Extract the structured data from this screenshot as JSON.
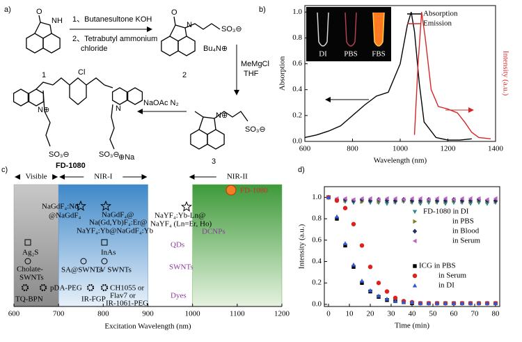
{
  "panels": {
    "a": {
      "label": "a)",
      "steps": [
        "1、Butanesultone KOH",
        "2、Tetrabutyl ammonium",
        "chloride",
        "MeMgCl",
        "THF",
        "NaOAc N₂"
      ],
      "compounds": [
        "1",
        "2",
        "3",
        "FD-1080"
      ],
      "atoms": [
        "NH",
        "O",
        "N",
        "O",
        "SO₃⊖",
        "Bu₄N⊕",
        "N⊕",
        "SO₃⊖",
        "Cl",
        "N⊕",
        "N",
        "SO₃⊖",
        "SO₃⊖",
        "⊕Na"
      ]
    },
    "b": {
      "label": "b)",
      "chart_data": {
        "type": "line",
        "xlabel": "Wavelength (nm)",
        "ylabel": "Absorption",
        "y2label": "Intensity (a.u.)",
        "xlim": [
          600,
          1400
        ],
        "xticks": [
          600,
          800,
          1000,
          1200,
          1400
        ],
        "ylim": [
          0,
          1.05
        ],
        "yticks": [
          {
            "value": 0,
            "label": "0.0"
          },
          0.2,
          0.4,
          0.6,
          0.8,
          {
            "value": 1,
            "label": "1.0"
          }
        ],
        "y2lim": [
          0,
          1.05
        ],
        "inset_labels": [
          "DI",
          "PBS",
          "FBS"
        ],
        "series": [
          {
            "name": "Absorption",
            "color": "#000000",
            "x": [
              600,
              650,
              700,
              750,
              800,
              850,
              900,
              950,
              1000,
              1030,
              1046,
              1060,
              1080,
              1100,
              1150,
              1200,
              1250,
              1300
            ],
            "values": [
              0.03,
              0.05,
              0.08,
              0.12,
              0.2,
              0.28,
              0.35,
              0.38,
              0.6,
              0.9,
              1.0,
              0.85,
              0.45,
              0.15,
              0.03,
              0.01,
              0.01,
              0.02
            ]
          },
          {
            "name": "Emission",
            "color": "#d62728",
            "axis": "y2",
            "x": [
              1060,
              1075,
              1090,
              1105,
              1130,
              1160,
              1200,
              1240,
              1270,
              1300,
              1330,
              1380
            ],
            "values": [
              0.05,
              0.6,
              1.0,
              0.8,
              0.4,
              0.27,
              0.25,
              0.22,
              0.15,
              0.07,
              0.03,
              0.02
            ]
          }
        ]
      }
    },
    "c": {
      "label": "c)",
      "xlabel": "Excitation Wavelength (nm)",
      "xlim": [
        600,
        1200
      ],
      "xticks": [
        600,
        700,
        800,
        900,
        1000,
        1100,
        1200
      ],
      "regions": [
        {
          "label": "Visible",
          "range": [
            600,
            700
          ],
          "color": "#9a9a9a"
        },
        {
          "label": "NIR-I",
          "range": [
            700,
            900
          ],
          "color": "#4a90c8"
        },
        {
          "label": "NIR-II",
          "range": [
            1000,
            1200
          ],
          "color": "#5aa84a"
        }
      ],
      "items": [
        "FD-1080",
        "NaGdF₄:Nd",
        "@NaGdF₄",
        "NaGdF₄@",
        "Na(Gd,Yb)F₄:Er@",
        "NaYF₄:Yb@NaGdF₄:Yb",
        "NaYF₄:Yb-Ln@",
        "NaYF₄ (Ln=Er, Ho)",
        "DCNPs",
        "Ag₂S",
        "InAs",
        "QDs",
        "Cholate-",
        "SWNTs",
        "SA@SWNTs",
        "LV SWNTs",
        "SWNTs",
        "pDA-PEG",
        "TQ-BPN",
        "IR-FGP",
        "CH1055 or",
        "Flav7 or",
        "IR-1061-PEG",
        "Dyes"
      ]
    },
    "d": {
      "label": "d)",
      "chart_data": {
        "type": "scatter",
        "xlabel": "Time (min)",
        "ylabel": "Intensity (a.u.)",
        "xlim": [
          -2,
          82
        ],
        "xticks": [
          0,
          10,
          20,
          30,
          40,
          50,
          60,
          70,
          80
        ],
        "ylim": [
          -0.02,
          1.1
        ],
        "yticks": [
          {
            "value": 0,
            "label": "0.0"
          },
          0.2,
          0.4,
          0.6,
          0.8,
          {
            "value": 1,
            "label": "1.0"
          }
        ],
        "x": [
          0,
          4,
          8,
          12,
          16,
          20,
          24,
          28,
          32,
          36,
          40,
          44,
          48,
          52,
          56,
          60,
          64,
          68,
          72,
          76,
          80
        ],
        "series": [
          {
            "name": "FD-1080 in DI",
            "color": "#2e8b8b",
            "marker": "triangle-down",
            "values": [
              1,
              0.97,
              0.96,
              0.95,
              0.96,
              0.95,
              0.95,
              0.94,
              0.95,
              0.96,
              0.95,
              0.94,
              0.95,
              0.95,
              0.94,
              0.95,
              0.95,
              0.94,
              0.95,
              0.94,
              0.95
            ]
          },
          {
            "name": "in PBS",
            "color": "#808020",
            "marker": "triangle-right",
            "values": [
              1,
              0.98,
              0.97,
              0.97,
              0.96,
              0.97,
              0.96,
              0.97,
              0.96,
              0.97,
              0.96,
              0.96,
              0.97,
              0.96,
              0.96,
              0.97,
              0.96,
              0.96,
              0.97,
              0.96,
              0.96
            ]
          },
          {
            "name": "in Blood",
            "color": "#1f2f6f",
            "marker": "diamond",
            "values": [
              1,
              0.98,
              0.98,
              0.97,
              0.98,
              0.97,
              0.98,
              0.97,
              0.97,
              0.98,
              0.97,
              0.97,
              0.98,
              0.97,
              0.97,
              0.98,
              0.97,
              0.97,
              0.98,
              0.97,
              0.97
            ]
          },
          {
            "name": "in Serum",
            "color": "#c060c0",
            "marker": "triangle-left",
            "values": [
              1,
              0.99,
              0.99,
              0.98,
              0.99,
              0.99,
              0.98,
              0.99,
              0.99,
              0.98,
              0.99,
              0.99,
              0.98,
              0.99,
              0.99,
              0.98,
              0.99,
              0.99,
              0.99,
              0.98,
              0.99
            ]
          },
          {
            "name": "ICG in PBS",
            "color": "#000000",
            "marker": "square",
            "values": [
              1,
              0.8,
              0.55,
              0.35,
              0.2,
              0.12,
              0.07,
              0.04,
              0.03,
              0.02,
              0.01,
              0.01,
              0.01,
              0.01,
              0.01,
              0.01,
              0.01,
              0.01,
              0.01,
              0.01,
              0.01
            ]
          },
          {
            "name": "in Serum",
            "color": "#e0201a",
            "marker": "circle",
            "values": [
              1,
              0.97,
              0.9,
              0.75,
              0.55,
              0.35,
              0.2,
              0.12,
              0.06,
              0.03,
              0.02,
              0.01,
              0.01,
              0.01,
              0.01,
              0.01,
              0.01,
              0.01,
              0.01,
              0.01,
              0.01
            ]
          },
          {
            "name": "in DI",
            "color": "#2a5bd0",
            "marker": "triangle-up",
            "values": [
              1,
              0.82,
              0.57,
              0.37,
              0.22,
              0.13,
              0.08,
              0.05,
              0.03,
              0.02,
              0.02,
              0.01,
              0.01,
              0.01,
              0.01,
              0.01,
              0.01,
              0.01,
              0.01,
              0.01,
              0.01
            ]
          }
        ]
      }
    }
  }
}
